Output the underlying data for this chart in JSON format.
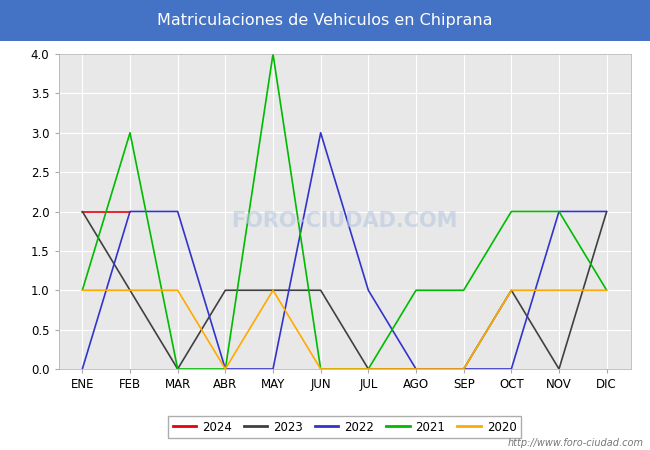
{
  "title": "Matriculaciones de Vehiculos en Chiprana",
  "title_bg_color": "#4472c4",
  "title_text_color": "#ffffff",
  "months": [
    "ENE",
    "FEB",
    "MAR",
    "ABR",
    "MAY",
    "JUN",
    "JUL",
    "AGO",
    "SEP",
    "OCT",
    "NOV",
    "DIC"
  ],
  "series": {
    "2024": {
      "values": [
        2,
        2,
        null,
        null,
        null,
        null,
        null,
        null,
        null,
        null,
        null,
        null
      ],
      "color": "#e8000e",
      "linewidth": 1.2
    },
    "2023": {
      "values": [
        2,
        1,
        0,
        1,
        1,
        1,
        0,
        0,
        0,
        1,
        0,
        2
      ],
      "color": "#404040",
      "linewidth": 1.2
    },
    "2022": {
      "values": [
        0,
        2,
        2,
        0,
        0,
        3,
        1,
        0,
        0,
        0,
        2,
        2
      ],
      "color": "#3333cc",
      "linewidth": 1.2
    },
    "2021": {
      "values": [
        1,
        3,
        0,
        0,
        4,
        0,
        0,
        1,
        1,
        2,
        2,
        1
      ],
      "color": "#00bb00",
      "linewidth": 1.2
    },
    "2020": {
      "values": [
        1,
        1,
        1,
        0,
        1,
        0,
        0,
        0,
        0,
        1,
        1,
        1
      ],
      "color": "#ffaa00",
      "linewidth": 1.2
    }
  },
  "ylim": [
    0,
    4.0
  ],
  "yticks": [
    0.0,
    0.5,
    1.0,
    1.5,
    2.0,
    2.5,
    3.0,
    3.5,
    4.0
  ],
  "plot_bg_color": "#e8e8e8",
  "grid_color": "#ffffff",
  "watermark": "http://www.foro-ciudad.com",
  "legend_order": [
    "2024",
    "2023",
    "2022",
    "2021",
    "2020"
  ],
  "figsize": [
    6.5,
    4.5
  ],
  "dpi": 100
}
